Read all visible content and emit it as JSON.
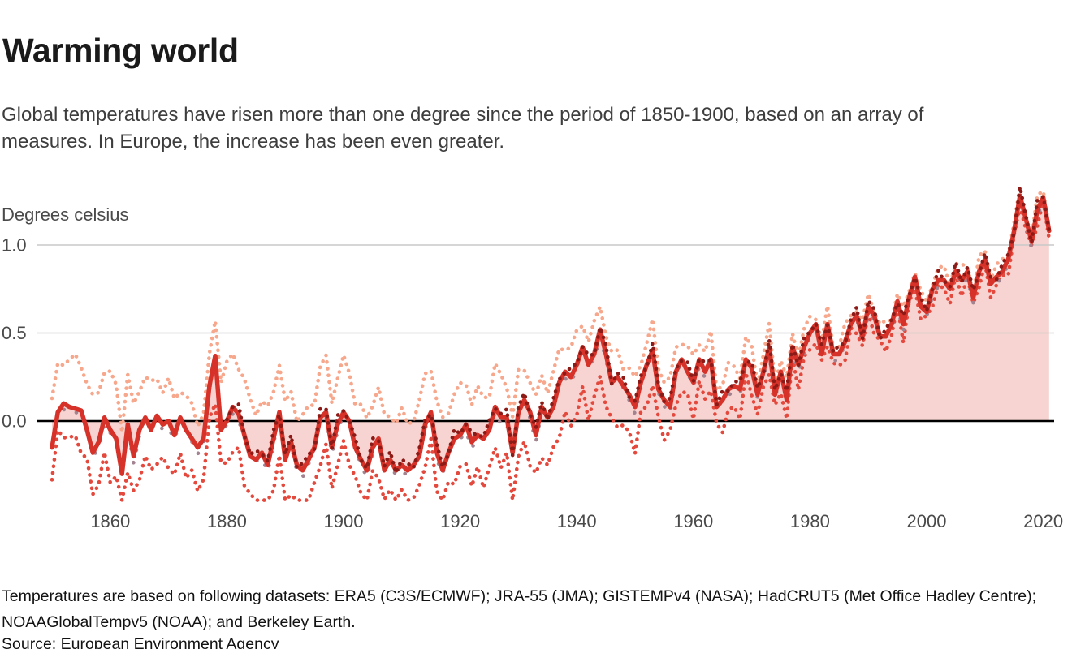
{
  "header": {
    "title": "Warming world",
    "subtitle": "Global temperatures have risen more than one degree since the period of 1850-1900, based on an array of measures. In Europe, the increase has been even greater."
  },
  "footer": {
    "note": "Temperatures are based on following datasets: ERA5 (C3S/ECMWF); JRA-55 (JMA); GISTEMPv4 (NASA); HadCRUT5 (Met Office Hadley Centre); NOAAGlobalTempv5 (NOAA); and Berkeley Earth.",
    "source": "Source: European Environment Agency"
  },
  "colors": {
    "mean_line": "#d63229",
    "area_fill": "#f7d4d1",
    "upper_dots": "#f7a78c",
    "lower_dots": "#e4493e",
    "dark_dots": "#8c1b17",
    "mauve_dots": "#a2838f",
    "gridline": "#c9c9c9",
    "zero_line": "#000000",
    "axis_text": "#4a4a4a"
  },
  "chart_data": {
    "type": "line",
    "ylabel": "Degrees celsius",
    "x_start_year": 1850,
    "x_end_year": 2021,
    "x_ticks": [
      1860,
      1880,
      1900,
      1920,
      1940,
      1960,
      1980,
      2000,
      2020
    ],
    "y_ticks": [
      {
        "value": 1.0,
        "label": "1.0"
      },
      {
        "value": 0.5,
        "label": "0.5"
      },
      {
        "value": 0.0,
        "label": "0.0"
      }
    ],
    "ylim": [
      -0.47,
      1.35
    ],
    "grid": true,
    "zero_line": true,
    "series": [
      {
        "id": "ensemble-mean",
        "type": "solid-line-with-area",
        "color": "#d63229",
        "fill_color": "#f7d4d1",
        "values": [
          -0.15,
          0.05,
          0.1,
          0.08,
          0.07,
          0.06,
          -0.05,
          -0.18,
          -0.12,
          0.02,
          -0.05,
          -0.1,
          -0.3,
          -0.02,
          -0.2,
          -0.05,
          0.02,
          -0.05,
          0.03,
          -0.02,
          0.0,
          -0.08,
          0.02,
          -0.05,
          -0.1,
          -0.15,
          -0.1,
          0.2,
          0.37,
          -0.05,
          0.0,
          0.08,
          0.04,
          -0.08,
          -0.2,
          -0.22,
          -0.18,
          -0.25,
          -0.1,
          0.05,
          -0.22,
          -0.12,
          -0.25,
          -0.28,
          -0.22,
          -0.15,
          0.02,
          0.05,
          -0.15,
          -0.02,
          0.05,
          0.0,
          -0.15,
          -0.22,
          -0.28,
          -0.15,
          -0.1,
          -0.28,
          -0.22,
          -0.28,
          -0.25,
          -0.28,
          -0.25,
          -0.2,
          -0.02,
          0.05,
          -0.18,
          -0.28,
          -0.18,
          -0.1,
          -0.08,
          -0.02,
          -0.12,
          -0.08,
          -0.1,
          -0.05,
          0.08,
          0.02,
          0.02,
          -0.18,
          0.05,
          0.12,
          0.05,
          -0.08,
          0.08,
          0.02,
          0.08,
          0.22,
          0.28,
          0.25,
          0.32,
          0.42,
          0.32,
          0.38,
          0.52,
          0.38,
          0.22,
          0.25,
          0.2,
          0.15,
          0.08,
          0.22,
          0.32,
          0.4,
          0.18,
          0.12,
          0.08,
          0.28,
          0.35,
          0.28,
          0.22,
          0.35,
          0.28,
          0.35,
          0.08,
          0.12,
          0.18,
          0.2,
          0.18,
          0.35,
          0.3,
          0.15,
          0.28,
          0.42,
          0.15,
          0.28,
          0.12,
          0.42,
          0.32,
          0.42,
          0.5,
          0.55,
          0.38,
          0.55,
          0.38,
          0.38,
          0.45,
          0.55,
          0.6,
          0.48,
          0.65,
          0.6,
          0.48,
          0.48,
          0.55,
          0.68,
          0.55,
          0.7,
          0.82,
          0.65,
          0.62,
          0.75,
          0.8,
          0.8,
          0.75,
          0.85,
          0.8,
          0.85,
          0.7,
          0.85,
          0.92,
          0.78,
          0.82,
          0.85,
          0.92,
          1.08,
          1.28,
          1.15,
          1.02,
          1.2,
          1.27,
          1.08
        ]
      },
      {
        "id": "upper-envelope-dataset",
        "type": "dotted",
        "color": "#f7a78c",
        "offsets_from_mean": [
          [
            1850,
            0.25
          ],
          [
            1860,
            0.3
          ],
          [
            1877,
            0.14
          ],
          [
            1879,
            0.3
          ],
          [
            1900,
            0.28
          ],
          [
            1915,
            0.28
          ],
          [
            1930,
            0.2
          ],
          [
            1944,
            0.14
          ],
          [
            1958,
            0.13
          ],
          [
            1970,
            0.1
          ],
          [
            1985,
            0.06
          ],
          [
            2021,
            0.04
          ]
        ],
        "jitter": {
          "amp": 0.045,
          "freq": 1.9,
          "phase": 0.7
        },
        "max_value": 1.33
      },
      {
        "id": "lower-envelope-dataset",
        "type": "dotted",
        "color": "#e4493e",
        "offsets_from_mean": [
          [
            1850,
            0.14
          ],
          [
            1860,
            0.25
          ],
          [
            1877,
            0.22
          ],
          [
            1890,
            0.26
          ],
          [
            1905,
            0.18
          ],
          [
            1917,
            0.2
          ],
          [
            1930,
            0.26
          ],
          [
            1944,
            0.27
          ],
          [
            1955,
            0.18
          ],
          [
            1965,
            0.14
          ],
          [
            1975,
            0.1
          ],
          [
            1990,
            0.06
          ],
          [
            2021,
            0.04
          ]
        ],
        "jitter": {
          "amp": 0.05,
          "freq": 2.45,
          "phase": 2.1
        },
        "min_value": -0.45
      },
      {
        "id": "dark-red-dataset",
        "type": "dotted",
        "color": "#8c1b17",
        "start_year": 1880,
        "offset": 0.02,
        "jitter": {
          "amp": 0.035,
          "freq": 2.2,
          "phase": 0.3
        }
      },
      {
        "id": "mauve-dataset",
        "type": "dotted-sparse",
        "color": "#a2838f",
        "offset": -0.02,
        "jitter": {
          "amp": 0.02,
          "freq": 1.1,
          "phase": 1.7
        }
      }
    ]
  }
}
